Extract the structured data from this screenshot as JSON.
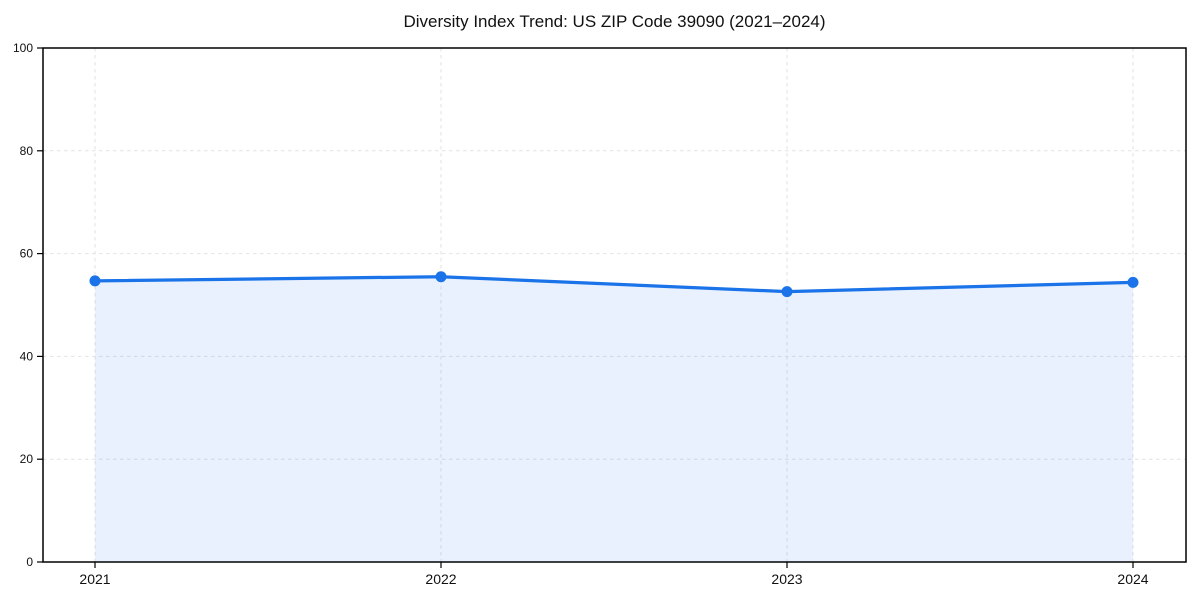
{
  "chart_data": {
    "type": "area",
    "title": "Diversity Index Trend: US ZIP Code 39090 (2021–2024)",
    "x": [
      2021,
      2022,
      2023,
      2024
    ],
    "xticks": [
      "2021",
      "2022",
      "2023",
      "2024"
    ],
    "yticks": [
      0,
      20,
      40,
      60,
      80,
      100
    ],
    "ylim": [
      0,
      100
    ],
    "series": [
      {
        "name": "Diversity Index",
        "values": [
          54.7,
          55.5,
          52.6,
          54.4
        ]
      }
    ],
    "xlabel": "",
    "ylabel": "",
    "grid": true,
    "grid_style": "dashed",
    "legend_position": "none",
    "line_color": "#1a73e8",
    "marker_color": "#1a73e8",
    "fill_color": "#1a73e8",
    "fill_opacity": 0.1,
    "grid_color": "#e2e2e2",
    "spine_color": "#000000"
  }
}
